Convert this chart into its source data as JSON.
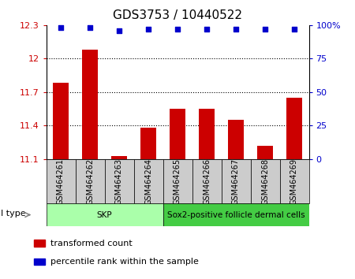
{
  "title": "GDS3753 / 10440522",
  "samples": [
    "GSM464261",
    "GSM464262",
    "GSM464263",
    "GSM464264",
    "GSM464265",
    "GSM464266",
    "GSM464267",
    "GSM464268",
    "GSM464269"
  ],
  "red_values": [
    11.78,
    12.08,
    11.13,
    11.38,
    11.55,
    11.55,
    11.45,
    11.22,
    11.65
  ],
  "blue_values": [
    98,
    98,
    96,
    97,
    97,
    97,
    97,
    97,
    97
  ],
  "ylim_left": [
    11.1,
    12.3
  ],
  "ylim_right": [
    0,
    100
  ],
  "yticks_left": [
    11.1,
    11.4,
    11.7,
    12.0,
    12.3
  ],
  "yticks_right": [
    0,
    25,
    50,
    75,
    100
  ],
  "ytick_labels_left": [
    "11.1",
    "11.4",
    "11.7",
    "12",
    "12.3"
  ],
  "ytick_labels_right": [
    "0",
    "25",
    "50",
    "75",
    "100%"
  ],
  "hlines": [
    11.4,
    11.7,
    12.0
  ],
  "bar_color": "#cc0000",
  "dot_color": "#0000cc",
  "cell_groups": [
    {
      "label": "SKP",
      "start": 0,
      "end": 4,
      "color": "#aaffaa"
    },
    {
      "label": "Sox2-positive follicle dermal cells",
      "start": 4,
      "end": 9,
      "color": "#44cc44"
    }
  ],
  "cell_type_label": "cell type",
  "legend_items": [
    {
      "color": "#cc0000",
      "label": "transformed count"
    },
    {
      "color": "#0000cc",
      "label": "percentile rank within the sample"
    }
  ],
  "bar_width": 0.55,
  "title_fontsize": 11,
  "tick_fontsize": 8,
  "label_fontsize": 8,
  "grey_box_color": "#cccccc",
  "sample_label_fontsize": 7
}
